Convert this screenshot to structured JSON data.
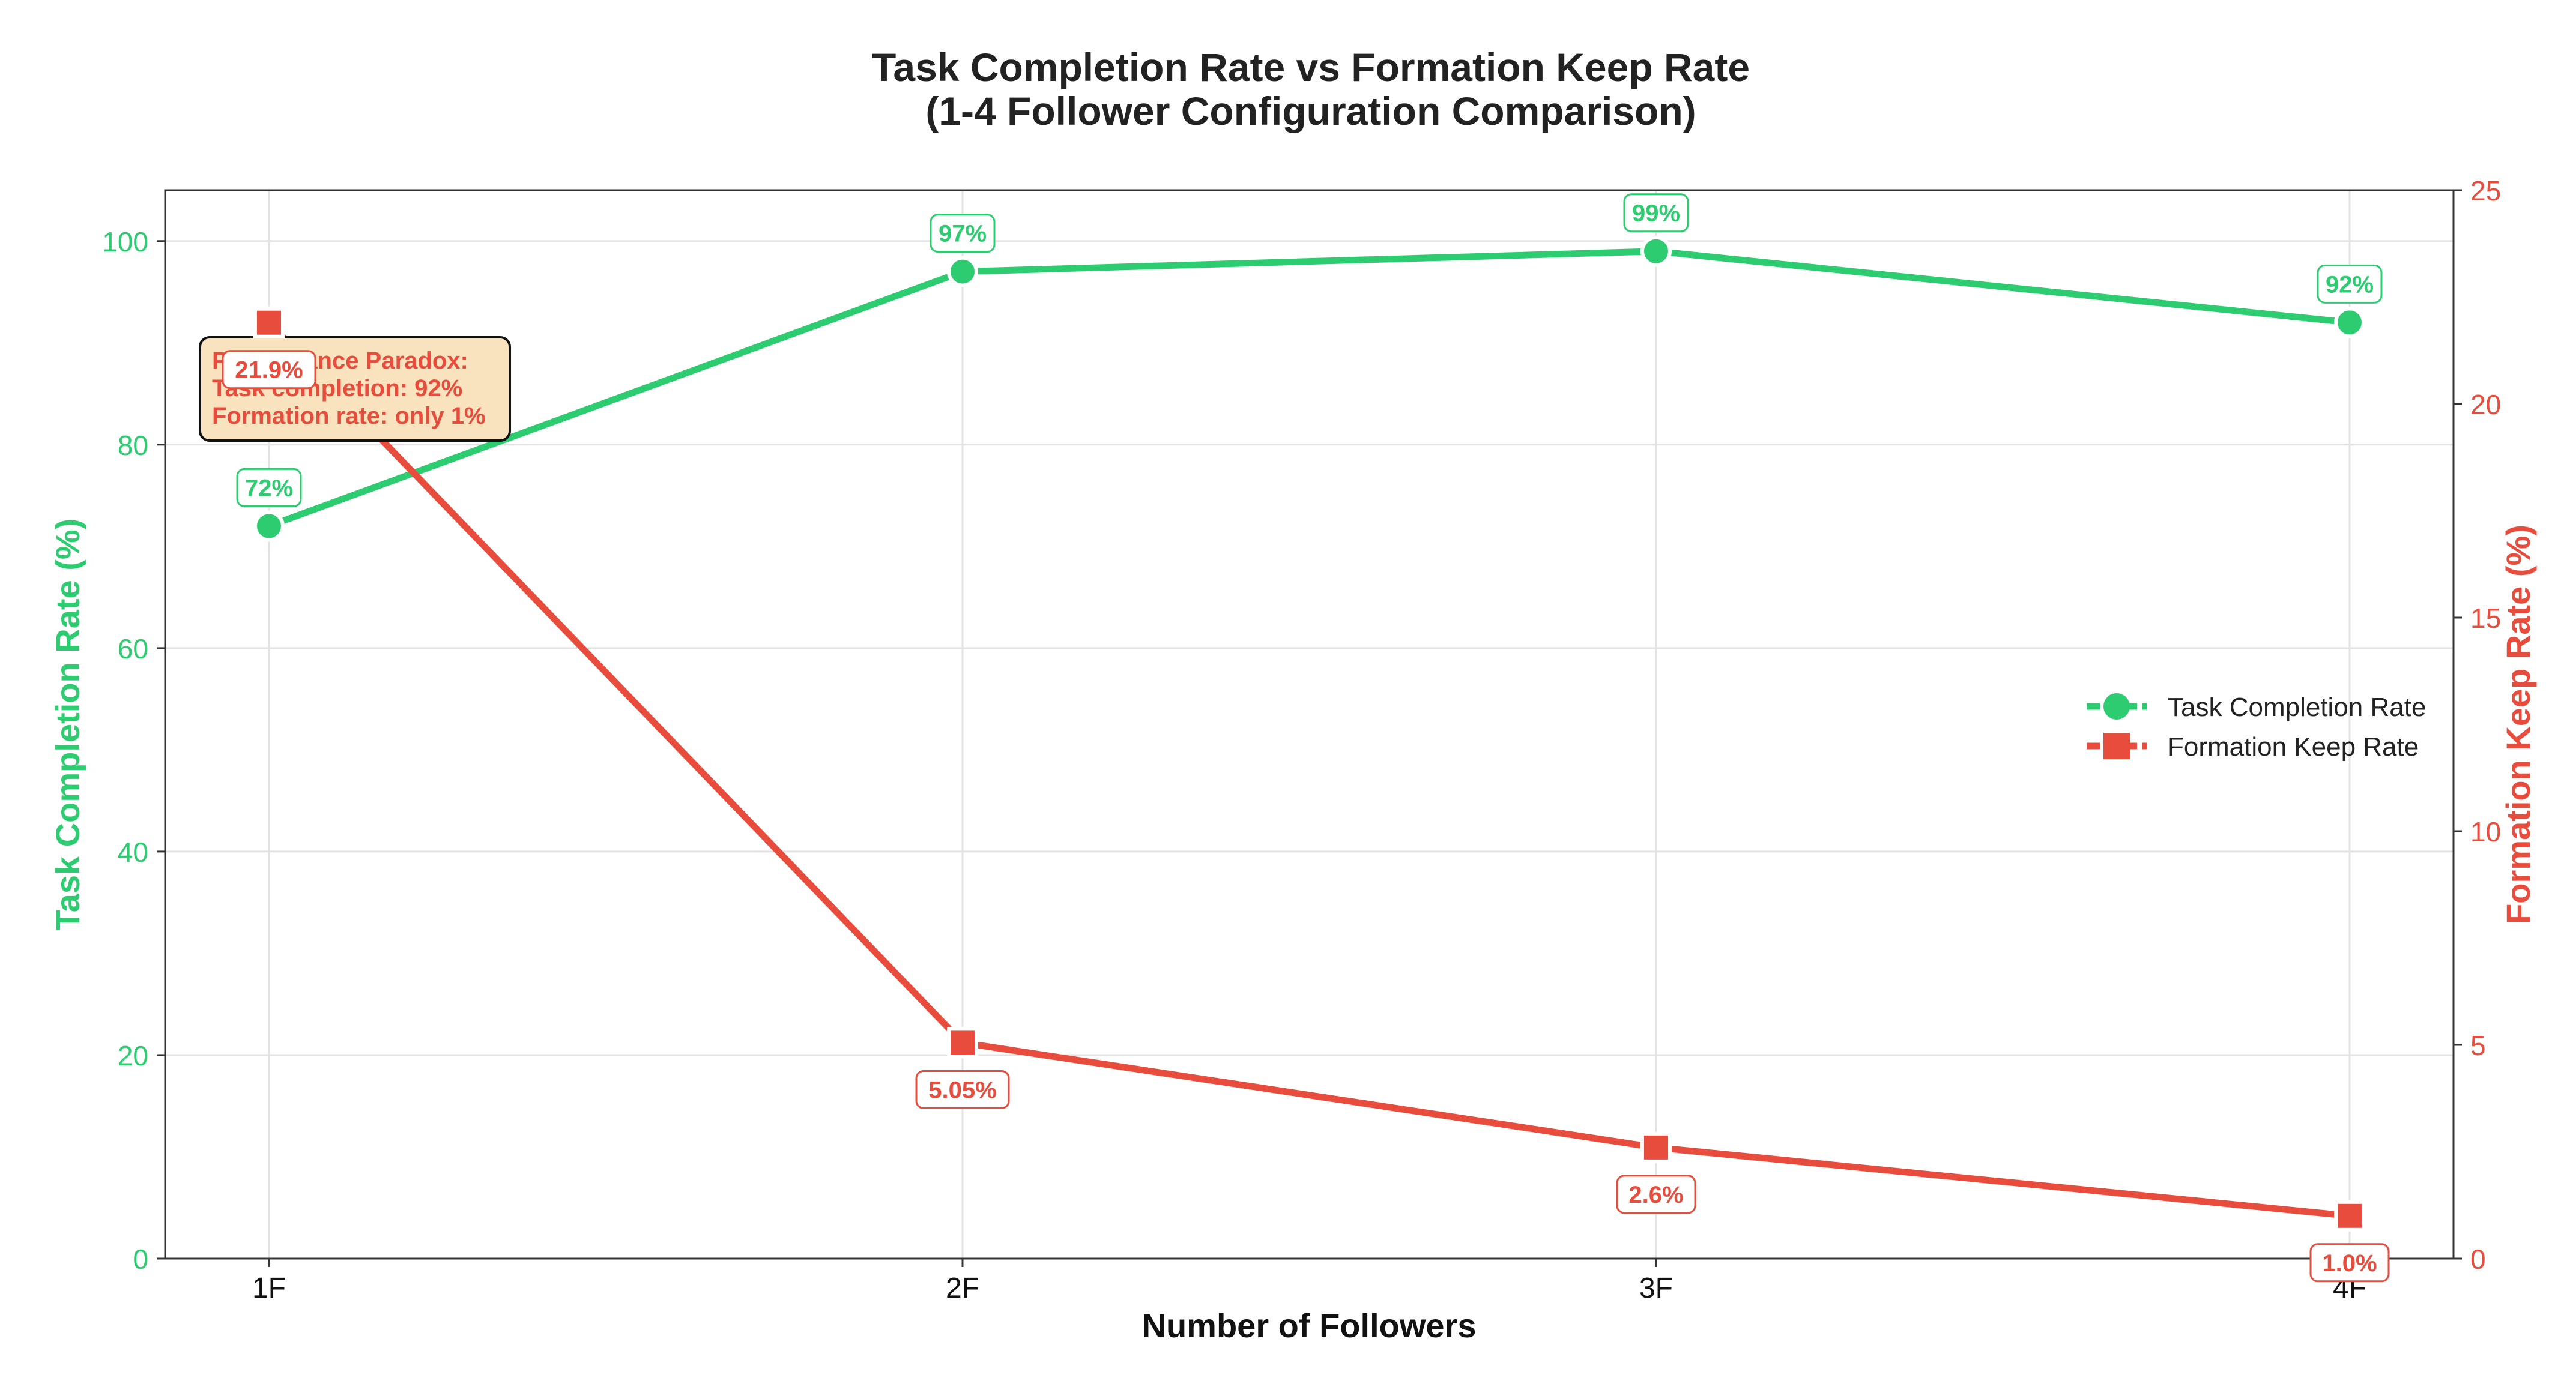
{
  "chart_data": {
    "type": "line",
    "title": "Task Completion Rate vs Formation Keep Rate",
    "subtitle": "(1-4 Follower Configuration Comparison)",
    "xlabel": "Number of Followers",
    "ylabel_left": "Task Completion Rate (%)",
    "ylabel_right": "Formation Keep Rate (%)",
    "categories": [
      "1F",
      "2F",
      "3F",
      "4F"
    ],
    "ylim_left": [
      0,
      105
    ],
    "ylim_right": [
      0,
      25
    ],
    "yticks_left": [
      0,
      20,
      40,
      60,
      80,
      100
    ],
    "yticks_right": [
      0,
      5,
      10,
      15,
      20,
      25
    ],
    "grid": true,
    "legend_position": "center-right",
    "series": [
      {
        "name": "Task Completion Rate",
        "axis": "left",
        "color": "#2ecc71",
        "marker": "circle",
        "values": [
          72,
          97,
          99,
          92
        ],
        "labels": [
          "72%",
          "97%",
          "99%",
          "92%"
        ]
      },
      {
        "name": "Formation Keep Rate",
        "axis": "right",
        "color": "#e74c3c",
        "marker": "square",
        "values": [
          21.9,
          5.05,
          2.6,
          1.0
        ],
        "labels": [
          "21.9%",
          "5.05%",
          "2.6%",
          "1.0%"
        ]
      }
    ],
    "annotation": {
      "lines": [
        "Performance Paradox:",
        "Task completion: 92%",
        "Formation rate: only 1%"
      ],
      "text_color": "#e74c3c",
      "background": "#f9e3bf"
    }
  }
}
